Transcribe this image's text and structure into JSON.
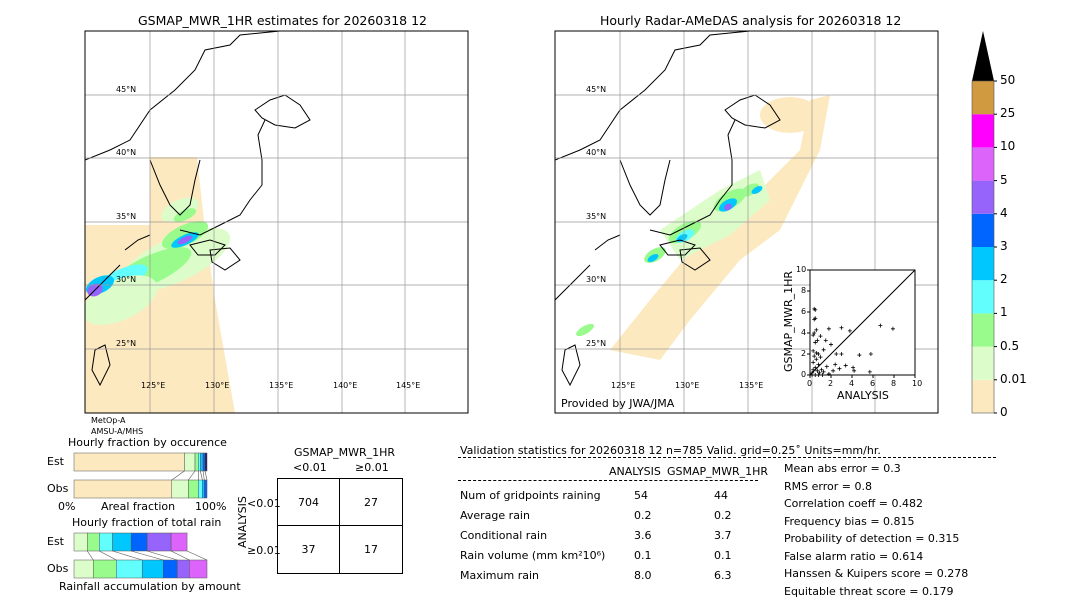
{
  "left_map": {
    "title": "GSMAP_MWR_1HR estimates for 20260318 12",
    "sensor_lines": [
      "MetOp-A",
      "AMSU-A/MHS"
    ],
    "lat_labels": [
      "45°N",
      "40°N",
      "35°N",
      "30°N",
      "25°N"
    ],
    "lon_labels": [
      "125°E",
      "130°E",
      "135°E",
      "140°E",
      "145°E"
    ]
  },
  "right_map": {
    "title": "Hourly Radar-AMeDAS analysis for 20260318 12",
    "credit": "Provided by JWA/JMA",
    "lat_labels": [
      "45°N",
      "40°N",
      "35°N",
      "30°N",
      "25°N"
    ],
    "lon_labels": [
      "125°E",
      "130°E",
      "135°E"
    ]
  },
  "colorbar": {
    "ticks": [
      "0",
      "0.01",
      "0.5",
      "1",
      "2",
      "3",
      "4",
      "5",
      "10",
      "25",
      "50"
    ],
    "colors": [
      "#fde9bf",
      "#dcfdca",
      "#98fb8c",
      "#62fefd",
      "#00c8fe",
      "#0064ff",
      "#9664fa",
      "#dc64fb",
      "#ff00ff",
      "#d09a40"
    ],
    "extend_color": "#000000"
  },
  "chart_data": [
    {
      "type": "scatter",
      "xlabel": "ANALYSIS",
      "ylabel": "GSMAP_MWR_1HR",
      "xlim": [
        0,
        10
      ],
      "ylim": [
        0,
        10
      ],
      "xticks": [
        "0",
        "2",
        "4",
        "6",
        "8",
        "10"
      ],
      "yticks": [
        "0",
        "2",
        "4",
        "6",
        "8",
        "10"
      ],
      "diagonal": true,
      "points": [
        [
          0.4,
          6.3
        ],
        [
          0.5,
          6.2
        ],
        [
          0.4,
          5.3
        ],
        [
          0.5,
          5.4
        ],
        [
          0.6,
          4.3
        ],
        [
          0.4,
          4.0
        ],
        [
          0.3,
          3.8
        ],
        [
          0.5,
          3.1
        ],
        [
          0.7,
          3.3
        ],
        [
          0.3,
          2.3
        ],
        [
          0.6,
          2.1
        ],
        [
          0.8,
          2.0
        ],
        [
          0.4,
          1.8
        ],
        [
          0.6,
          1.5
        ],
        [
          0.3,
          1.2
        ],
        [
          0.8,
          1.0
        ],
        [
          0.5,
          0.7
        ],
        [
          0.3,
          0.5
        ],
        [
          0.7,
          0.4
        ],
        [
          0.2,
          0.2
        ],
        [
          0.9,
          0.2
        ],
        [
          1.1,
          0.5
        ],
        [
          1.3,
          0.3
        ],
        [
          1.8,
          0.1
        ],
        [
          0.2,
          0.0
        ],
        [
          0.5,
          0.0
        ],
        [
          0.8,
          0.0
        ],
        [
          1.2,
          0.0
        ],
        [
          1.8,
          4.4
        ],
        [
          1.0,
          3.7
        ],
        [
          1.5,
          3.3
        ],
        [
          2.0,
          2.9
        ],
        [
          1.3,
          2.4
        ],
        [
          1.0,
          1.7
        ],
        [
          2.5,
          2.0
        ],
        [
          3.0,
          4.5
        ],
        [
          3.0,
          2.0
        ],
        [
          3.8,
          4.2
        ],
        [
          4.7,
          1.9
        ],
        [
          5.8,
          2.0
        ],
        [
          5.7,
          0.3
        ],
        [
          6.7,
          4.7
        ],
        [
          7.9,
          4.4
        ],
        [
          2.4,
          1.0
        ],
        [
          2.8,
          0.6
        ],
        [
          3.4,
          0.9
        ],
        [
          4.1,
          0.7
        ],
        [
          4.2,
          0.4
        ],
        [
          1.6,
          0.8
        ],
        [
          2.2,
          0.4
        ]
      ]
    },
    {
      "type": "bar",
      "title": "Hourly fraction by occurence",
      "xlabel": "Areal fraction",
      "xtick_left": "0%",
      "xtick_right": "100%",
      "categories": [
        "Est",
        "Obs"
      ],
      "cumulative": {
        "Est": [
          0.83,
          0.91,
          0.935,
          0.95,
          0.97,
          0.985,
          1.0
        ],
        "Obs": [
          0.735,
          0.86,
          0.935,
          0.965,
          0.98,
          1.0
        ]
      },
      "colors": [
        "#fde9bf",
        "#dcfdca",
        "#98fb8c",
        "#62fefd",
        "#00c8fe",
        "#0064ff",
        "#1a1a6a"
      ]
    },
    {
      "type": "bar",
      "title": "Hourly fraction of total rain",
      "xlabel": "Rainfall accumulation by amount",
      "categories": [
        "Est",
        "Obs"
      ],
      "cumulative": {
        "Est": [
          0.1,
          0.19,
          0.29,
          0.43,
          0.55,
          0.73,
          0.85
        ],
        "Obs": [
          0.145,
          0.318,
          0.513,
          0.671,
          0.777,
          0.867,
          1.0
        ]
      },
      "colors": [
        "#dcfdca",
        "#98fb8c",
        "#62fefd",
        "#00c8fe",
        "#0064ff",
        "#9664fa",
        "#dc64fb"
      ]
    }
  ],
  "contingency": {
    "col_title": "GSMAP_MWR_1HR",
    "cols": [
      "<0.01",
      "≥0.01"
    ],
    "row_title": "ANALYSIS",
    "rows": [
      "<0.01",
      "≥0.01"
    ],
    "cells": [
      [
        "704",
        "27"
      ],
      [
        "37",
        "17"
      ]
    ]
  },
  "stats": {
    "header": "Validation statistics for 20260318 12  n=785 Valid. grid=0.25˚ Units=mm/hr.",
    "col_headers": [
      "ANALYSIS",
      "GSMAP_MWR_1HR"
    ],
    "rows": [
      {
        "label": "Num of gridpoints raining",
        "a": "54",
        "g": "44"
      },
      {
        "label": "Average rain",
        "a": "0.2",
        "g": "0.2"
      },
      {
        "label": "Conditional rain",
        "a": "3.6",
        "g": "3.7"
      },
      {
        "label": "Rain volume (mm km²10⁶)",
        "a": "0.1",
        "g": "0.1"
      },
      {
        "label": "Maximum rain",
        "a": "8.0",
        "g": "6.3"
      }
    ],
    "scores": [
      "Mean abs error =    0.3",
      "RMS error =    0.8",
      "Correlation coeff =  0.482",
      "Frequency bias =  0.815",
      "Probability of detection =  0.315",
      "False alarm ratio =  0.614",
      "Hanssen & Kuipers score =  0.278",
      "Equitable threat score =  0.179"
    ]
  }
}
